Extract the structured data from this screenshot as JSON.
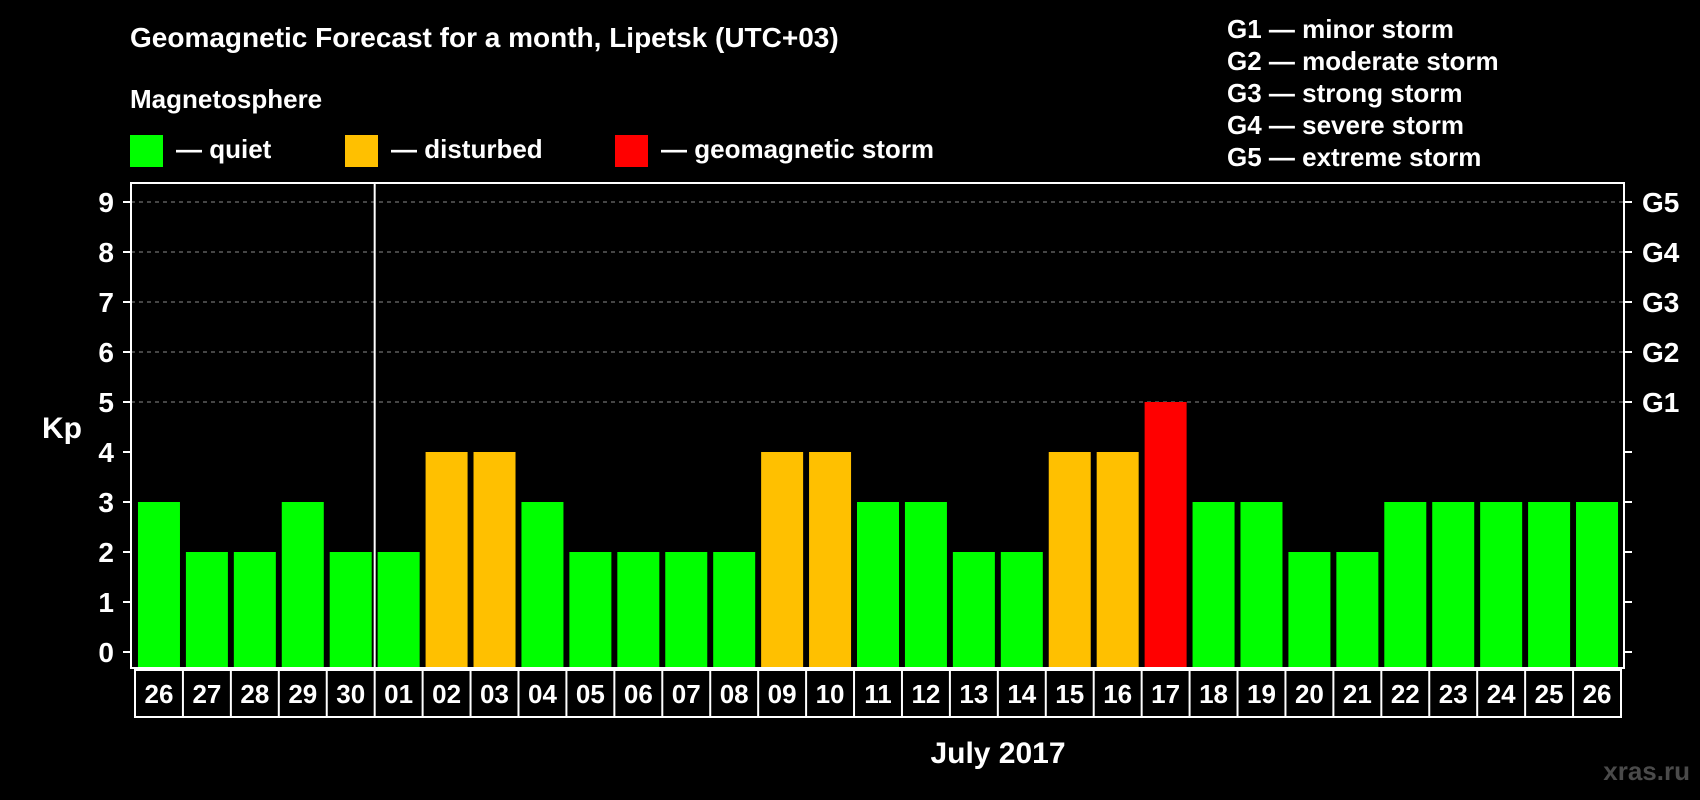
{
  "chart_data": {
    "type": "bar",
    "title": "Geomagnetic Forecast for a month, Lipetsk (UTC+03)",
    "legend_title": "Magnetosphere",
    "legend": [
      {
        "label": "— quiet",
        "color": "#00ff00"
      },
      {
        "label": "— disturbed",
        "color": "#ffc000"
      },
      {
        "label": "— geomagnetic storm",
        "color": "#ff0000"
      }
    ],
    "storm_levels": [
      "G1 — minor storm",
      "G2 — moderate storm",
      "G3 — strong storm",
      "G4 — severe storm",
      "G5 — extreme storm"
    ],
    "ylabel": "Kp",
    "xlabel": "July 2017",
    "ylim": [
      0,
      9
    ],
    "yticks": [
      "0",
      "1",
      "2",
      "3",
      "4",
      "5",
      "6",
      "7",
      "8",
      "9"
    ],
    "right_ticks": [
      {
        "kp": 5,
        "label": "G1"
      },
      {
        "kp": 6,
        "label": "G2"
      },
      {
        "kp": 7,
        "label": "G3"
      },
      {
        "kp": 8,
        "label": "G4"
      },
      {
        "kp": 9,
        "label": "G5"
      }
    ],
    "gridlines_at": [
      5,
      6,
      7,
      8,
      9
    ],
    "month_divider_after_index": 4,
    "categories": [
      "26",
      "27",
      "28",
      "29",
      "30",
      "01",
      "02",
      "03",
      "04",
      "05",
      "06",
      "07",
      "08",
      "09",
      "10",
      "11",
      "12",
      "13",
      "14",
      "15",
      "16",
      "17",
      "18",
      "19",
      "20",
      "21",
      "22",
      "23",
      "24",
      "25",
      "26"
    ],
    "values": [
      3,
      2,
      2,
      3,
      2,
      2,
      4,
      4,
      3,
      2,
      2,
      2,
      2,
      4,
      4,
      3,
      3,
      2,
      2,
      4,
      4,
      5,
      3,
      3,
      2,
      2,
      3,
      3,
      3,
      3,
      3
    ],
    "colors": {
      "quiet": "#00ff00",
      "disturbed": "#ffc000",
      "storm": "#ff0000"
    }
  },
  "watermark": "xras.ru"
}
